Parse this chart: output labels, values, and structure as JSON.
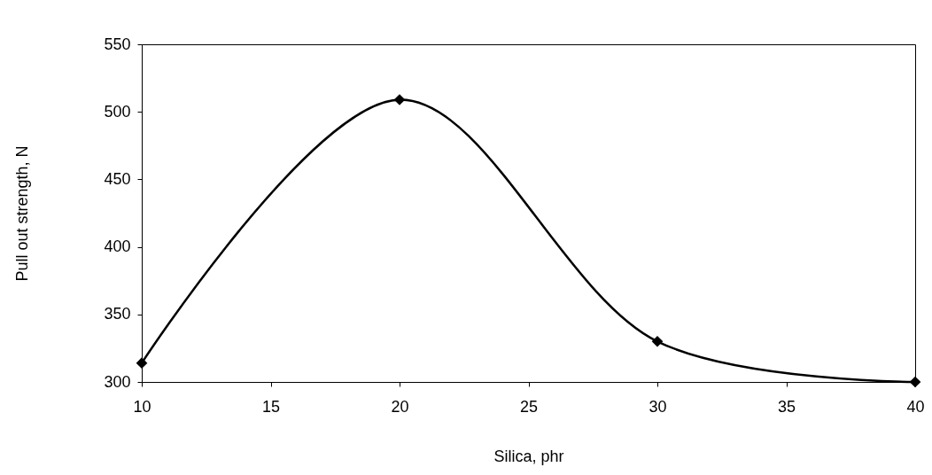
{
  "chart_data": {
    "type": "line",
    "xlabel": "Silica, phr",
    "ylabel": "Pull out strength, N",
    "x": [
      10,
      20,
      30,
      40
    ],
    "series": [
      {
        "color": "#000000",
        "values": [
          314,
          509,
          330,
          300
        ]
      }
    ],
    "xlim": [
      10,
      40
    ],
    "xticks": [
      10,
      15,
      20,
      25,
      30,
      35,
      40
    ],
    "ylim": [
      300,
      550
    ],
    "yticks": [
      300,
      350,
      400,
      450,
      500,
      550
    ],
    "grid": false,
    "marker": "diamond",
    "line_style": "solid"
  }
}
